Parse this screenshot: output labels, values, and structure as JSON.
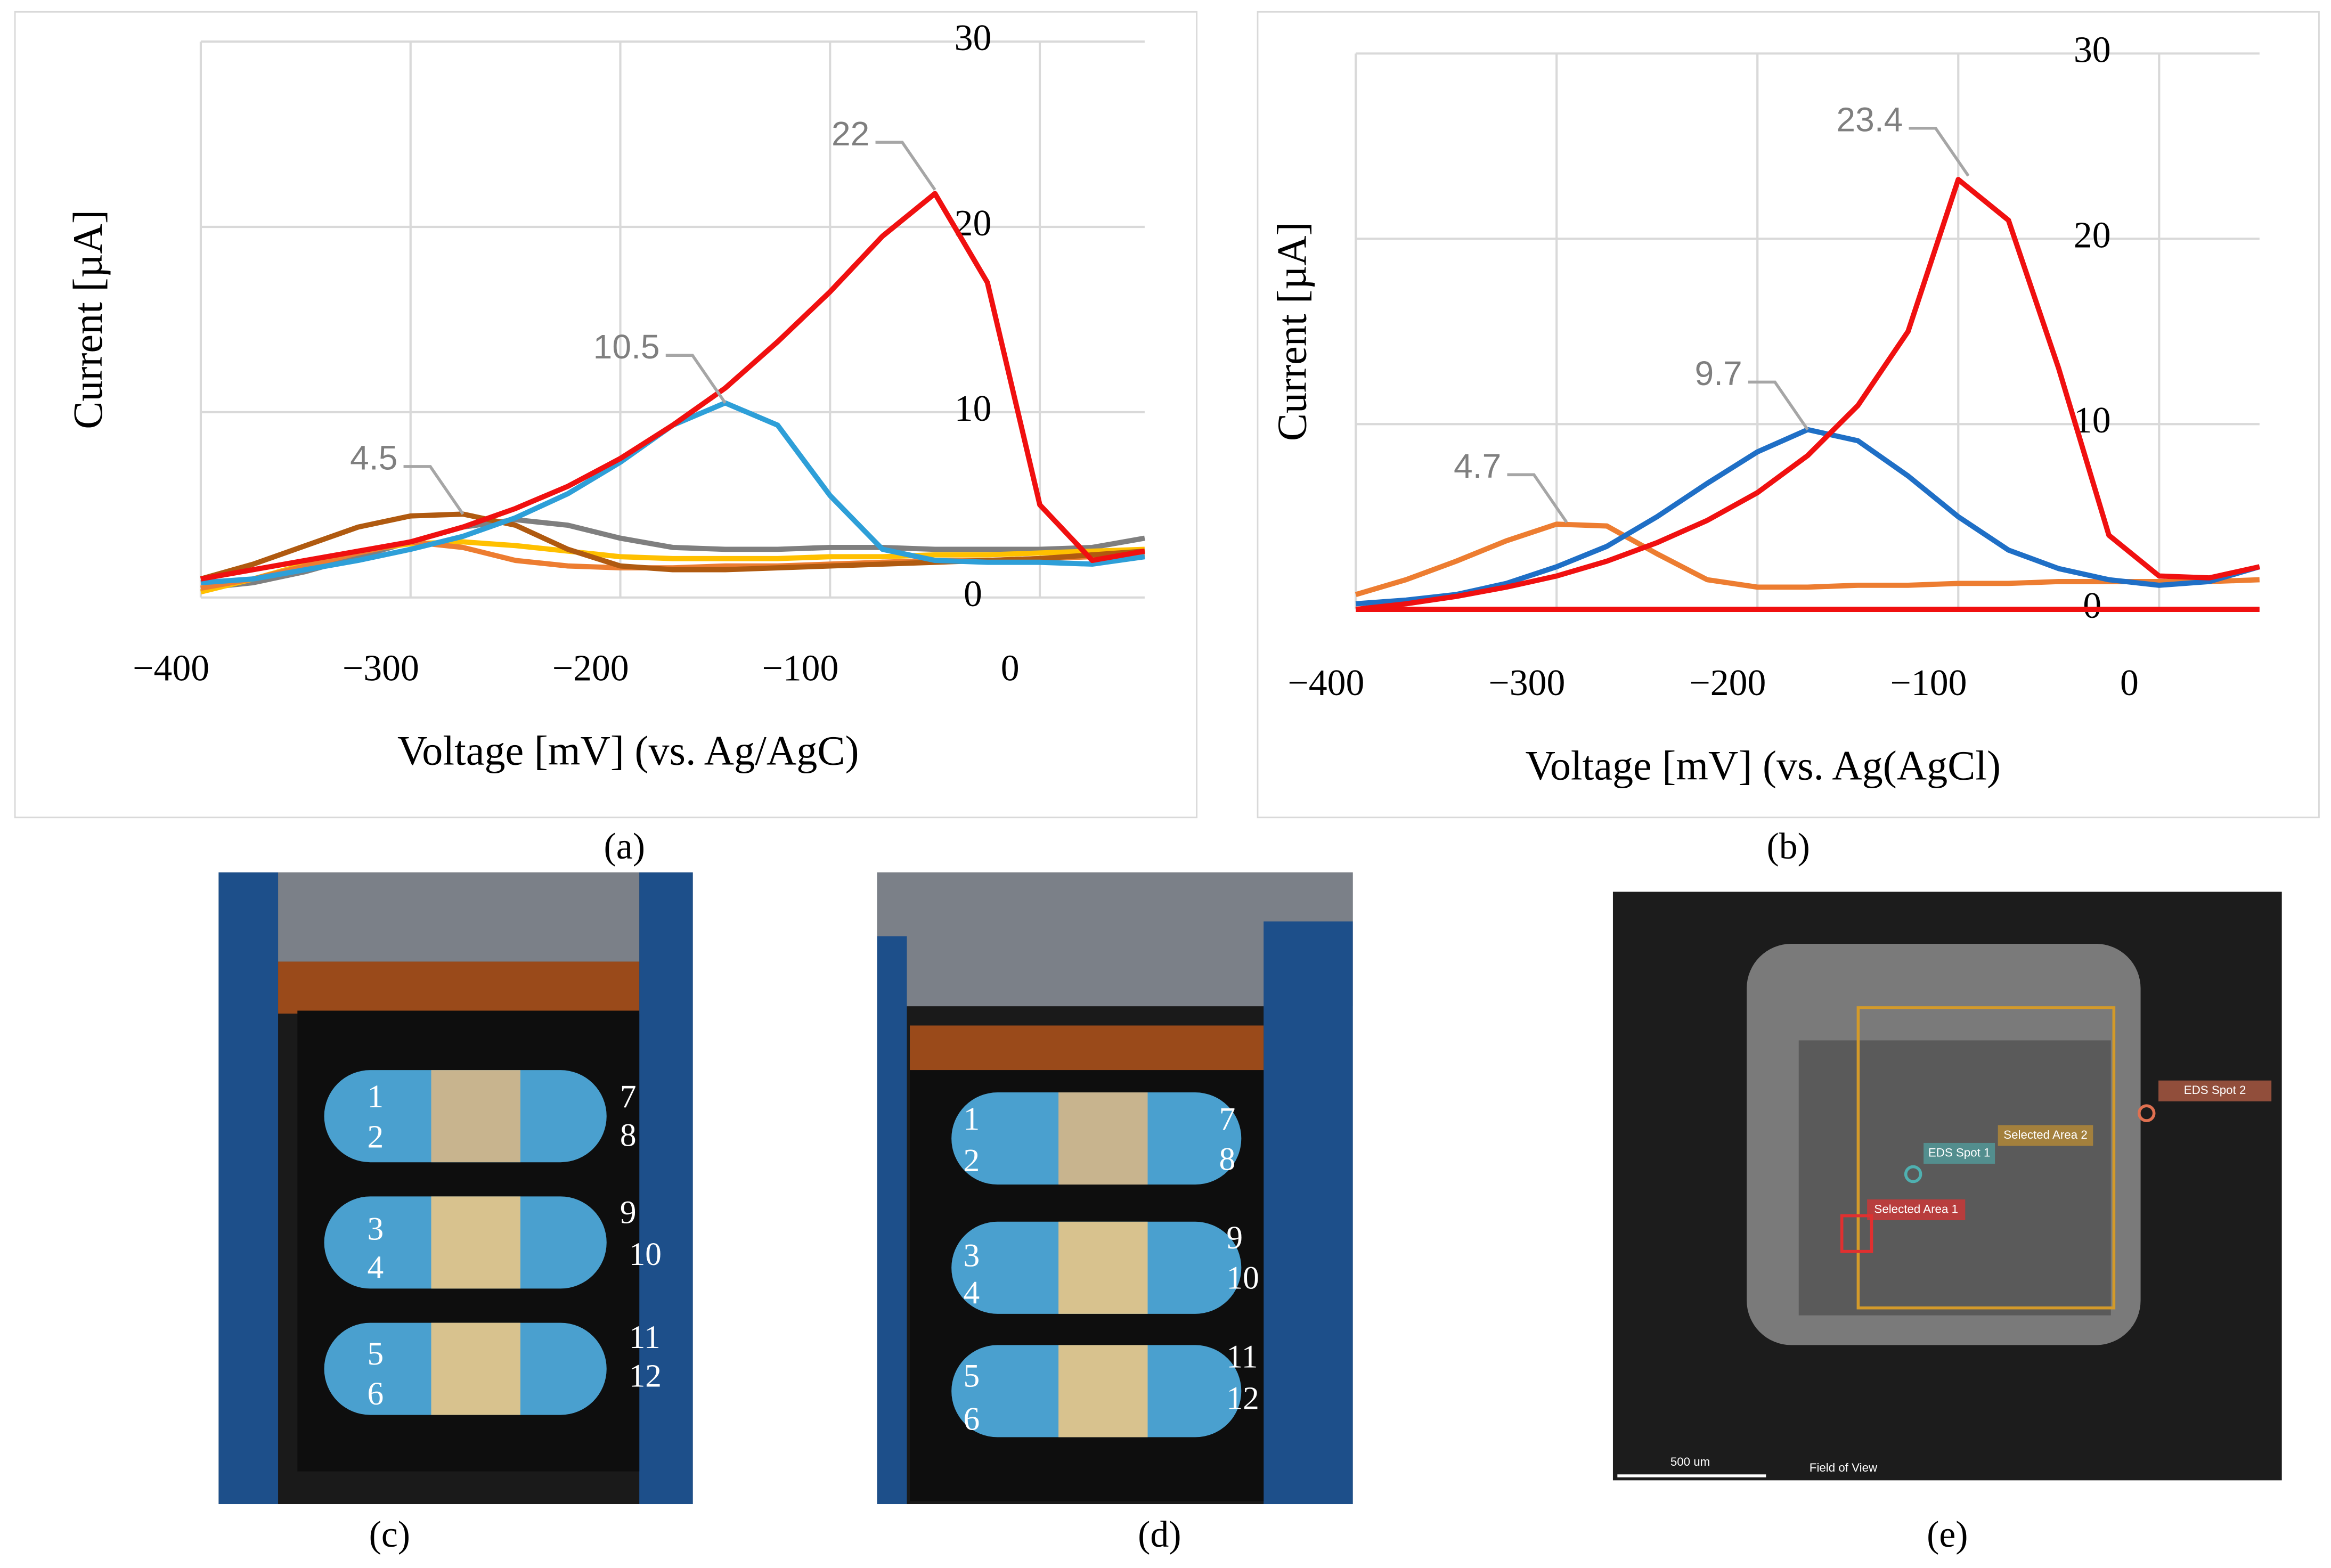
{
  "chart_data": [
    {
      "type": "line",
      "xlabel": "Voltage [mV] (vs. Ag/AgC)",
      "ylabel": "Current [µA]",
      "caption": "(a)",
      "x": [
        -400,
        -375,
        -350,
        -325,
        -300,
        -275,
        -250,
        -225,
        -200,
        -175,
        -150,
        -125,
        -100,
        -75,
        -50,
        -25,
        0,
        25,
        50
      ],
      "xlim": [
        -400,
        50
      ],
      "ylim": [
        0,
        30
      ],
      "grid": true,
      "xticks": [
        {
          "value": -400,
          "label": "−400"
        },
        {
          "value": -300,
          "label": "−300"
        },
        {
          "value": -200,
          "label": "−200"
        },
        {
          "value": -100,
          "label": "−100"
        },
        0
      ],
      "yticks": [
        0,
        10,
        20,
        30
      ],
      "series": [
        {
          "color": "#7f7f7f",
          "values": [
            0.5,
            0.8,
            1.4,
            2.2,
            3,
            3.8,
            4.2,
            3.9,
            3.2,
            2.7,
            2.6,
            2.6,
            2.7,
            2.7,
            2.6,
            2.6,
            2.6,
            2.7,
            3.2
          ]
        },
        {
          "color": "#ffc000",
          "values": [
            0.3,
            1,
            1.8,
            2.5,
            2.9,
            3,
            2.8,
            2.5,
            2.2,
            2.1,
            2.1,
            2.1,
            2.2,
            2.2,
            2.3,
            2.3,
            2.4,
            2.5,
            2.6
          ]
        },
        {
          "color": "#ed7d31",
          "values": [
            0.5,
            1,
            1.7,
            2.4,
            3,
            2.7,
            2,
            1.7,
            1.6,
            1.6,
            1.7,
            1.7,
            1.8,
            1.9,
            2,
            2,
            2.1,
            2.2,
            2.3
          ]
        },
        {
          "color": "#b05a10",
          "values": [
            1,
            1.8,
            2.8,
            3.8,
            4.4,
            4.5,
            3.9,
            2.6,
            1.7,
            1.5,
            1.5,
            1.6,
            1.7,
            1.8,
            1.9,
            2,
            2.1,
            2.3,
            2.5
          ]
        },
        {
          "color": "#2e9fd8",
          "values": [
            0.8,
            1,
            1.5,
            2,
            2.6,
            3.3,
            4.3,
            5.6,
            7.3,
            9.3,
            10.5,
            9.3,
            5.5,
            2.6,
            2,
            1.9,
            1.9,
            1.8,
            2.2
          ]
        },
        {
          "color": "#f01010",
          "values": [
            1,
            1.5,
            2,
            2.5,
            3,
            3.8,
            4.8,
            6,
            7.5,
            9.3,
            11.3,
            13.8,
            16.5,
            19.5,
            21.8,
            17,
            5,
            2,
            2.5
          ]
        }
      ],
      "annotations": [
        {
          "label": "22",
          "x": -50,
          "y": 22
        },
        {
          "label": "10.5",
          "x": -150,
          "y": 10.5
        },
        {
          "label": "4.5",
          "x": -275,
          "y": 4.5
        }
      ]
    },
    {
      "type": "line",
      "xlabel": "Voltage [mV] (vs. Ag(AgCl)",
      "ylabel": "Current [µA]",
      "caption": "(b)",
      "x": [
        -400,
        -375,
        -350,
        -325,
        -300,
        -275,
        -250,
        -225,
        -200,
        -175,
        -150,
        -125,
        -100,
        -75,
        -50,
        -25,
        0,
        25,
        50
      ],
      "xlim": [
        -400,
        50
      ],
      "ylim": [
        0,
        30
      ],
      "grid": true,
      "xticks": [
        {
          "value": -400,
          "label": "−400"
        },
        {
          "value": -300,
          "label": "−300"
        },
        {
          "value": -200,
          "label": "−200"
        },
        {
          "value": -100,
          "label": "−100"
        },
        0
      ],
      "yticks": [
        0,
        10,
        20,
        30
      ],
      "series": [
        {
          "color": "#f01010",
          "values": [
            0,
            0,
            0,
            0,
            0,
            0,
            0,
            0,
            0,
            0,
            0,
            0,
            0,
            0,
            0,
            0,
            0,
            0,
            0
          ]
        },
        {
          "color": "#ed7d31",
          "values": [
            0.8,
            1.6,
            2.6,
            3.7,
            4.6,
            4.5,
            3,
            1.6,
            1.2,
            1.2,
            1.3,
            1.3,
            1.4,
            1.4,
            1.5,
            1.5,
            1.5,
            1.5,
            1.6
          ]
        },
        {
          "color": "#1f6fc6",
          "values": [
            0.3,
            0.5,
            0.8,
            1.4,
            2.3,
            3.4,
            5,
            6.8,
            8.5,
            9.7,
            9.1,
            7.2,
            5,
            3.2,
            2.2,
            1.6,
            1.3,
            1.5,
            2.3
          ]
        },
        {
          "color": "#f01010",
          "values": [
            0,
            0.3,
            0.7,
            1.2,
            1.8,
            2.6,
            3.6,
            4.8,
            6.3,
            8.3,
            11,
            15,
            23.2,
            21,
            13,
            4,
            1.8,
            1.7,
            2.3
          ]
        }
      ],
      "annotations": [
        {
          "label": "23.4",
          "x": -95,
          "y": 23.4
        },
        {
          "label": "9.7",
          "x": -175,
          "y": 9.7
        },
        {
          "label": "4.7",
          "x": -295,
          "y": 4.7
        }
      ]
    }
  ],
  "photos": [
    {
      "caption": "(c)",
      "labels": [
        "1",
        "2",
        "3",
        "4",
        "5",
        "6",
        "7",
        "8",
        "9",
        "10",
        "11",
        "12"
      ]
    },
    {
      "caption": "(d)",
      "labels": [
        "1",
        "2",
        "3",
        "4",
        "5",
        "6",
        "7",
        "8",
        "9",
        "10",
        "11",
        "12"
      ]
    },
    {
      "caption": "(e)",
      "labels": [
        "EDS Spot 2",
        "Selected Area 2",
        "EDS Spot 1",
        "Selected Area 1",
        "500 um",
        "Field of View"
      ]
    }
  ]
}
